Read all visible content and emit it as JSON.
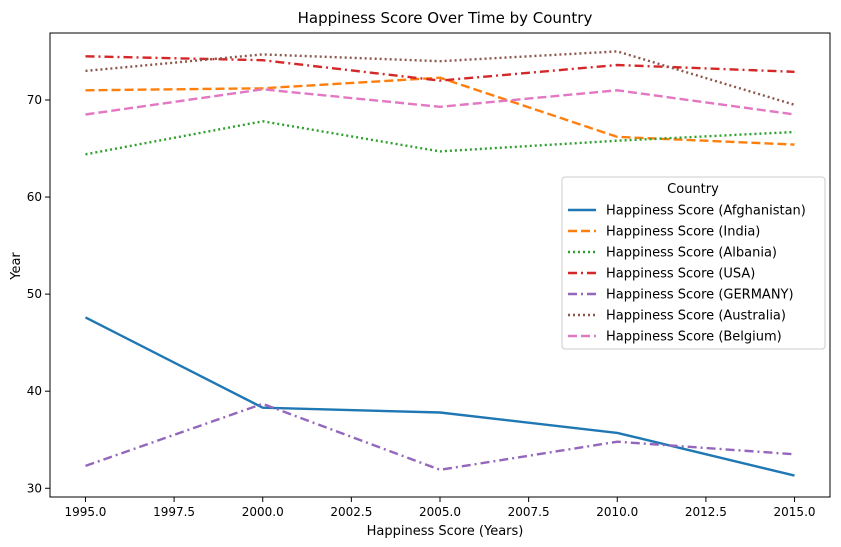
{
  "chart_data": {
    "type": "line",
    "title": "Happiness Score Over Time by Country",
    "xlabel": "Happiness Score (Years)",
    "ylabel": "Year",
    "x": [
      1995,
      2000,
      2005,
      2010,
      2015
    ],
    "xlim": [
      1994.0,
      2016.0
    ],
    "ylim": [
      29.1,
      76.9
    ],
    "xticks": [
      1995.0,
      1997.5,
      2000.0,
      2002.5,
      2005.0,
      2007.5,
      2010.0,
      2012.5,
      2015.0
    ],
    "xtick_labels": [
      "1995.0",
      "1997.5",
      "2000.0",
      "2002.5",
      "2005.0",
      "2007.5",
      "2010.0",
      "2012.5",
      "2015.0"
    ],
    "yticks": [
      30,
      40,
      50,
      60,
      70
    ],
    "ytick_labels": [
      "30",
      "40",
      "50",
      "60",
      "70"
    ],
    "grid": false,
    "legend": {
      "title": "Country",
      "placement": "center-right"
    },
    "series": [
      {
        "name": "Happiness Score (Afghanistan)",
        "color": "#1f77b4",
        "dash": "solid",
        "values": [
          47.6,
          38.3,
          37.8,
          35.7,
          31.3
        ]
      },
      {
        "name": "Happiness Score (India)",
        "color": "#ff7f0e",
        "dash": "dashed",
        "values": [
          71.0,
          71.2,
          72.3,
          66.2,
          65.4
        ]
      },
      {
        "name": "Happiness Score (Albania)",
        "color": "#2ca02c",
        "dash": "dotted",
        "values": [
          64.4,
          67.8,
          64.7,
          65.8,
          66.7
        ]
      },
      {
        "name": "Happiness Score (USA)",
        "color": "#d62728",
        "dash": "dashdot",
        "values": [
          74.5,
          74.1,
          72.0,
          73.6,
          72.9
        ]
      },
      {
        "name": "Happiness Score (GERMANY)",
        "color": "#9467bd",
        "dash": "dashdot",
        "values": [
          32.3,
          38.7,
          31.9,
          34.8,
          33.5
        ]
      },
      {
        "name": "Happiness Score (Australia)",
        "color": "#8c564b",
        "dash": "dotted",
        "values": [
          73.0,
          74.7,
          74.0,
          75.0,
          69.5
        ]
      },
      {
        "name": "Happiness Score (Belgium)",
        "color": "#e377c2",
        "dash": "dashed",
        "values": [
          68.5,
          71.1,
          69.3,
          71.0,
          68.5
        ]
      }
    ]
  }
}
